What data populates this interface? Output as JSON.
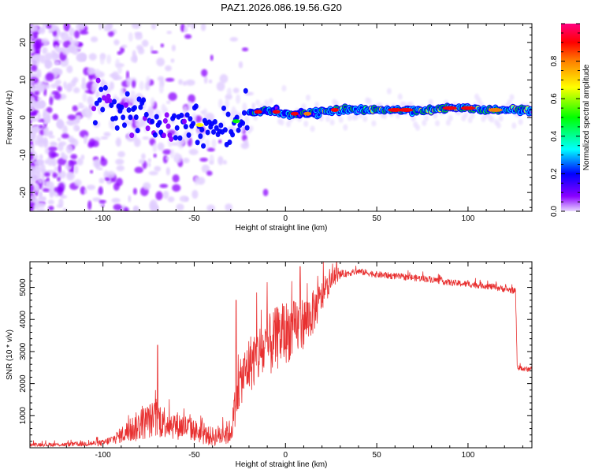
{
  "title": "PAZ1.2026.086.19.56.G20",
  "chart_data": [
    {
      "type": "heatmap",
      "xlabel": "Height of straight line (km)",
      "ylabel": "Frequency (Hz)",
      "xlim": [
        -140,
        135
      ],
      "ylim": [
        -25,
        25
      ],
      "xticks": [
        -100,
        -50,
        0,
        50,
        100
      ],
      "xtick_labels": [
        "-100",
        "-50",
        "0",
        "50",
        "100"
      ],
      "yticks": [
        -20,
        -10,
        0,
        10,
        20
      ],
      "ytick_labels": [
        "-20",
        "-10",
        "0",
        "10",
        "20"
      ],
      "ridge": {
        "x": [
          -100,
          -90,
          -80,
          -70,
          -60,
          -50,
          -45,
          -40,
          -35,
          -30,
          -25,
          -20,
          -15,
          -10,
          -5,
          0,
          10,
          20,
          30,
          40,
          60,
          80,
          90,
          100,
          110,
          120,
          135
        ],
        "freq": [
          5,
          3,
          1,
          -1,
          -2,
          -1,
          -2,
          -3,
          -3,
          -1,
          0,
          1,
          1.5,
          2,
          1.5,
          1,
          1,
          1.5,
          2,
          2,
          2,
          2,
          2.5,
          2.5,
          2,
          2,
          2
        ]
      },
      "colorbar": {
        "label": "Normalized spectral amplitude",
        "range": [
          0,
          1
        ],
        "ticks": [
          0.0,
          0.2,
          0.4,
          0.6,
          0.8
        ],
        "tick_labels": [
          "0.0",
          "0.2",
          "0.4",
          "0.6",
          "0.8"
        ],
        "colors": [
          "#e8d8ff",
          "#8a00ff",
          "#0000ff",
          "#00ffff",
          "#00ff00",
          "#ffff00",
          "#ff8000",
          "#ff0000",
          "#ff0080"
        ]
      }
    },
    {
      "type": "line",
      "xlabel": "Height of straight line (km)",
      "ylabel": "SNR (10 * v/v)",
      "xlim": [
        -140,
        135
      ],
      "ylim": [
        0,
        5800
      ],
      "xticks": [
        -100,
        -50,
        0,
        50,
        100
      ],
      "xtick_labels": [
        "-100",
        "-50",
        "0",
        "50",
        "100"
      ],
      "yticks": [
        1000,
        2000,
        3000,
        4000,
        5000
      ],
      "ytick_labels": [
        "1000",
        "2000",
        "3000",
        "4000",
        "5000"
      ],
      "color": "#e83030",
      "series": [
        {
          "name": "SNR",
          "x": [
            -140,
            -120,
            -100,
            -95,
            -90,
            -85,
            -80,
            -75,
            -70,
            -65,
            -60,
            -55,
            -50,
            -45,
            -40,
            -35,
            -30,
            -25,
            -20,
            -15,
            -10,
            -5,
            0,
            5,
            10,
            15,
            20,
            25,
            30,
            35,
            40,
            50,
            60,
            70,
            80,
            90,
            100,
            110,
            120,
            125,
            126,
            127,
            130,
            135
          ],
          "y": [
            100,
            100,
            150,
            250,
            400,
            550,
            700,
            850,
            900,
            800,
            700,
            650,
            550,
            400,
            350,
            400,
            500,
            2000,
            2600,
            2900,
            3100,
            3400,
            3600,
            3700,
            3900,
            4200,
            4700,
            5200,
            5400,
            5450,
            5500,
            5400,
            5350,
            5300,
            5250,
            5150,
            5100,
            5050,
            4950,
            4900,
            4900,
            2500,
            2450,
            2450
          ],
          "spread": [
            60,
            60,
            100,
            150,
            250,
            400,
            500,
            550,
            600,
            500,
            450,
            400,
            350,
            300,
            300,
            350,
            400,
            700,
            900,
            950,
            1000,
            1000,
            1000,
            900,
            800,
            700,
            500,
            250,
            120,
            100,
            100,
            100,
            100,
            100,
            100,
            100,
            100,
            100,
            100,
            100,
            100,
            80,
            80,
            80
          ],
          "peaks": [
            {
              "x": -70,
              "y": 3200
            },
            {
              "x": -27,
              "y": 4600
            },
            {
              "x": 8,
              "y": 5650
            },
            {
              "x": 28,
              "y": 5800
            }
          ]
        }
      ]
    }
  ]
}
